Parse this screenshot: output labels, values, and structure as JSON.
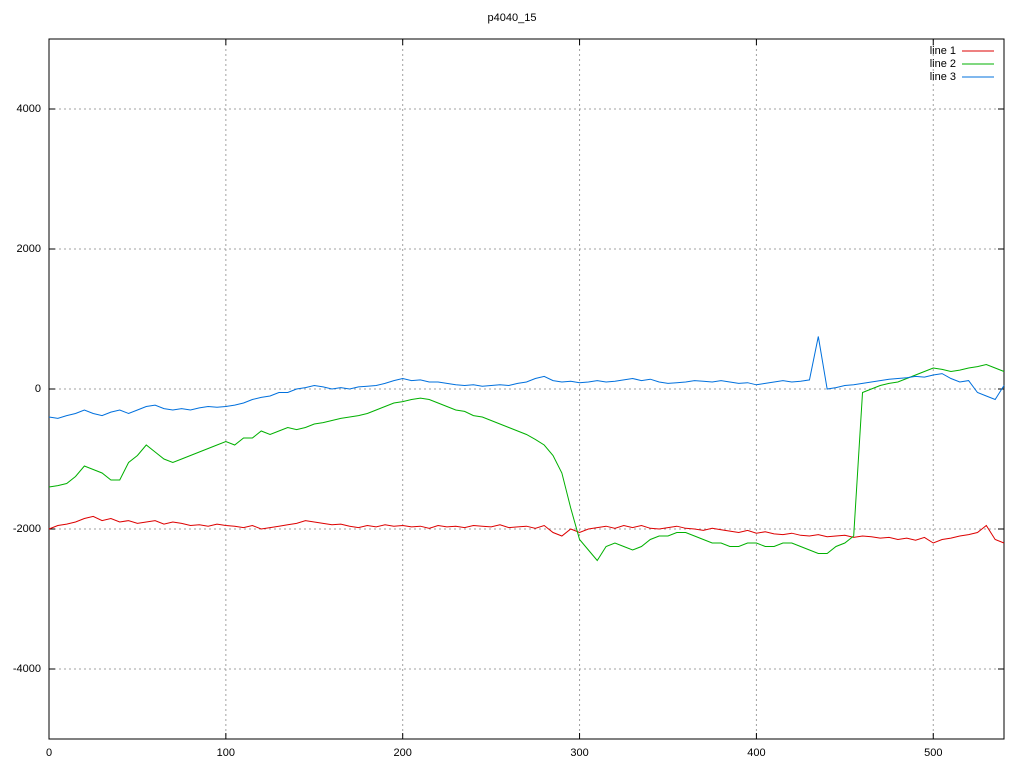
{
  "chart_data": {
    "type": "line",
    "title": "p4040_15",
    "x": [
      0,
      5,
      10,
      15,
      20,
      25,
      30,
      35,
      40,
      45,
      50,
      55,
      60,
      65,
      70,
      75,
      80,
      85,
      90,
      95,
      100,
      105,
      110,
      115,
      120,
      125,
      130,
      135,
      140,
      145,
      150,
      155,
      160,
      165,
      170,
      175,
      180,
      185,
      190,
      195,
      200,
      205,
      210,
      215,
      220,
      225,
      230,
      235,
      240,
      245,
      250,
      255,
      260,
      265,
      270,
      275,
      280,
      285,
      290,
      295,
      300,
      305,
      310,
      315,
      320,
      325,
      330,
      335,
      340,
      345,
      350,
      355,
      360,
      365,
      370,
      375,
      380,
      385,
      390,
      395,
      400,
      405,
      410,
      415,
      420,
      425,
      430,
      435,
      440,
      445,
      450,
      455,
      460,
      465,
      470,
      475,
      480,
      485,
      490,
      495,
      500,
      505,
      510,
      515,
      520,
      525,
      530,
      535,
      540
    ],
    "series": [
      {
        "name": "line 1",
        "color": "#dd0000",
        "values": [
          -2000,
          -1950,
          -1930,
          -1900,
          -1850,
          -1820,
          -1880,
          -1850,
          -1900,
          -1880,
          -1920,
          -1900,
          -1880,
          -1930,
          -1900,
          -1920,
          -1950,
          -1940,
          -1960,
          -1930,
          -1950,
          -1960,
          -1980,
          -1950,
          -2000,
          -1980,
          -1960,
          -1940,
          -1920,
          -1880,
          -1900,
          -1920,
          -1940,
          -1930,
          -1960,
          -1980,
          -1950,
          -1970,
          -1940,
          -1960,
          -1950,
          -1970,
          -1960,
          -1990,
          -1950,
          -1970,
          -1960,
          -1980,
          -1950,
          -1960,
          -1970,
          -1940,
          -1980,
          -1970,
          -1960,
          -1990,
          -1950,
          -2050,
          -2100,
          -2000,
          -2050,
          -2000,
          -1980,
          -1960,
          -1990,
          -1950,
          -1980,
          -1950,
          -1990,
          -2000,
          -1980,
          -1960,
          -1990,
          -2000,
          -2020,
          -1990,
          -2010,
          -2030,
          -2050,
          -2020,
          -2060,
          -2040,
          -2070,
          -2080,
          -2060,
          -2090,
          -2100,
          -2080,
          -2110,
          -2100,
          -2090,
          -2120,
          -2100,
          -2110,
          -2130,
          -2120,
          -2150,
          -2130,
          -2160,
          -2120,
          -2200,
          -2150,
          -2130,
          -2100,
          -2080,
          -2050,
          -1950,
          -2150,
          -2200
        ]
      },
      {
        "name": "line 2",
        "color": "#00b000",
        "values": [
          -1400,
          -1380,
          -1350,
          -1250,
          -1100,
          -1150,
          -1200,
          -1300,
          -1300,
          -1050,
          -950,
          -800,
          -900,
          -1000,
          -1050,
          -1000,
          -950,
          -900,
          -850,
          -800,
          -750,
          -800,
          -700,
          -700,
          -600,
          -650,
          -600,
          -550,
          -580,
          -550,
          -500,
          -480,
          -450,
          -420,
          -400,
          -380,
          -350,
          -300,
          -250,
          -200,
          -180,
          -150,
          -130,
          -150,
          -200,
          -250,
          -300,
          -320,
          -380,
          -400,
          -450,
          -500,
          -550,
          -600,
          -650,
          -720,
          -800,
          -950,
          -1200,
          -1700,
          -2150,
          -2300,
          -2450,
          -2250,
          -2200,
          -2250,
          -2300,
          -2250,
          -2150,
          -2100,
          -2100,
          -2050,
          -2050,
          -2100,
          -2150,
          -2200,
          -2200,
          -2250,
          -2250,
          -2200,
          -2200,
          -2250,
          -2250,
          -2200,
          -2200,
          -2250,
          -2300,
          -2350,
          -2350,
          -2250,
          -2200,
          -2100,
          -50,
          0,
          50,
          80,
          100,
          150,
          200,
          250,
          300,
          280,
          250,
          270,
          300,
          320,
          350,
          300,
          250
        ]
      },
      {
        "name": "line 3",
        "color": "#0070dd",
        "values": [
          -400,
          -420,
          -380,
          -350,
          -300,
          -350,
          -380,
          -330,
          -300,
          -350,
          -300,
          -250,
          -230,
          -280,
          -300,
          -280,
          -300,
          -270,
          -250,
          -260,
          -250,
          -230,
          -200,
          -150,
          -120,
          -100,
          -50,
          -50,
          0,
          20,
          50,
          30,
          0,
          20,
          0,
          30,
          40,
          50,
          80,
          120,
          150,
          120,
          130,
          100,
          100,
          80,
          60,
          50,
          60,
          40,
          50,
          60,
          50,
          80,
          100,
          150,
          180,
          120,
          100,
          110,
          90,
          100,
          120,
          100,
          110,
          130,
          150,
          120,
          140,
          100,
          80,
          90,
          100,
          120,
          110,
          100,
          120,
          100,
          80,
          90,
          60,
          80,
          100,
          120,
          100,
          110,
          130,
          750,
          0,
          20,
          50,
          60,
          80,
          100,
          120,
          140,
          150,
          160,
          180,
          170,
          200,
          220,
          150,
          100,
          120,
          -50,
          -100,
          -150,
          50
        ]
      }
    ],
    "xlim": [
      0,
      540
    ],
    "ylim": [
      -5000,
      5000
    ],
    "xticks": [
      0,
      100,
      200,
      300,
      400,
      500
    ],
    "yticks": [
      -4000,
      -2000,
      0,
      2000,
      4000
    ],
    "grid": true,
    "legend": "top-right"
  }
}
